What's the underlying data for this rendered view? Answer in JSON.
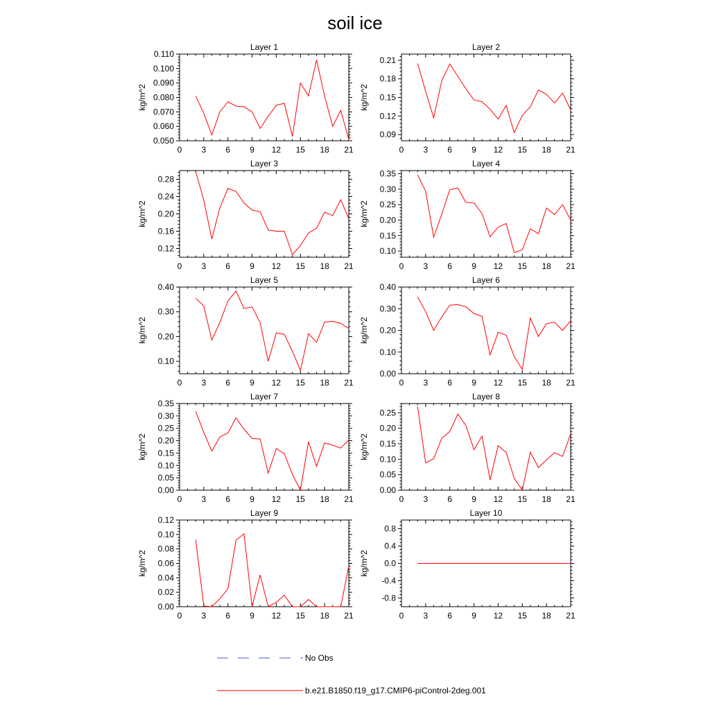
{
  "title": "soil ice",
  "colors": {
    "model_line": "#ff0000",
    "obs_line": "#4a5bd6",
    "axis": "#000000"
  },
  "legend": {
    "obs_label": "No Obs",
    "model_label": "b.e21.B1850.f19_g17.CMIP6-piControl-2deg.001"
  },
  "chart_data": [
    {
      "type": "line",
      "title": "Layer 1",
      "ylabel": "kg/m^2",
      "xlim": [
        0,
        21
      ],
      "ylim": [
        0.05,
        0.11
      ],
      "xticks": [
        "0",
        "3",
        "6",
        "9",
        "12",
        "15",
        "18",
        "21"
      ],
      "yticks": [
        {
          "value": 0.05,
          "label": "0.050"
        },
        {
          "value": 0.06,
          "label": "0.060"
        },
        {
          "value": 0.07,
          "label": "0.070"
        },
        {
          "value": 0.08,
          "label": "0.080"
        },
        {
          "value": 0.09,
          "label": "0.090"
        },
        {
          "value": 0.1,
          "label": "0.100"
        },
        {
          "value": 0.11,
          "label": "0.110"
        }
      ],
      "x": [
        2,
        3,
        4,
        5,
        6,
        7,
        8,
        9,
        10,
        11,
        12,
        13,
        14,
        15,
        16,
        17,
        18,
        19,
        20,
        21
      ],
      "values": [
        0.081,
        0.069,
        0.054,
        0.07,
        0.077,
        0.074,
        0.0735,
        0.07,
        0.0585,
        0.067,
        0.0745,
        0.076,
        0.053,
        0.09,
        0.081,
        0.106,
        0.081,
        0.06,
        0.071,
        0.051
      ]
    },
    {
      "type": "line",
      "title": "Layer 2",
      "ylabel": "kg/m^2",
      "xlim": [
        0,
        21
      ],
      "ylim": [
        0.08,
        0.22
      ],
      "xticks": [
        "0",
        "3",
        "6",
        "9",
        "12",
        "15",
        "18",
        "21"
      ],
      "yticks": [
        {
          "value": 0.09,
          "label": "0.09"
        },
        {
          "value": 0.12,
          "label": "0.12"
        },
        {
          "value": 0.15,
          "label": "0.15"
        },
        {
          "value": 0.18,
          "label": "0.18"
        },
        {
          "value": 0.21,
          "label": "0.21"
        }
      ],
      "x": [
        2,
        3,
        4,
        5,
        6,
        7,
        8,
        9,
        10,
        11,
        12,
        13,
        14,
        15,
        16,
        17,
        18,
        19,
        20,
        21
      ],
      "values": [
        0.205,
        0.16,
        0.117,
        0.177,
        0.204,
        0.184,
        0.164,
        0.146,
        0.143,
        0.131,
        0.115,
        0.137,
        0.093,
        0.121,
        0.135,
        0.162,
        0.155,
        0.141,
        0.157,
        0.13
      ]
    },
    {
      "type": "line",
      "title": "Layer 3",
      "ylabel": "kg/m^2",
      "xlim": [
        0,
        21
      ],
      "ylim": [
        0.1,
        0.3
      ],
      "xticks": [
        "0",
        "3",
        "6",
        "9",
        "12",
        "15",
        "18",
        "21"
      ],
      "yticks": [
        {
          "value": 0.12,
          "label": "0.12"
        },
        {
          "value": 0.16,
          "label": "0.16"
        },
        {
          "value": 0.2,
          "label": "0.20"
        },
        {
          "value": 0.24,
          "label": "0.24"
        },
        {
          "value": 0.28,
          "label": "0.28"
        }
      ],
      "x": [
        2,
        3,
        4,
        5,
        6,
        7,
        8,
        9,
        10,
        11,
        12,
        13,
        14,
        15,
        16,
        17,
        18,
        19,
        20,
        21
      ],
      "values": [
        0.298,
        0.232,
        0.142,
        0.214,
        0.259,
        0.252,
        0.225,
        0.209,
        0.205,
        0.163,
        0.16,
        0.16,
        0.106,
        0.127,
        0.156,
        0.167,
        0.204,
        0.196,
        0.233,
        0.189
      ]
    },
    {
      "type": "line",
      "title": "Layer 4",
      "ylabel": "kg/m^2",
      "xlim": [
        0,
        21
      ],
      "ylim": [
        0.08,
        0.36
      ],
      "xticks": [
        "0",
        "3",
        "6",
        "9",
        "12",
        "15",
        "18",
        "21"
      ],
      "yticks": [
        {
          "value": 0.1,
          "label": "0.10"
        },
        {
          "value": 0.15,
          "label": "0.15"
        },
        {
          "value": 0.2,
          "label": "0.20"
        },
        {
          "value": 0.25,
          "label": "0.25"
        },
        {
          "value": 0.3,
          "label": "0.30"
        },
        {
          "value": 0.35,
          "label": "0.35"
        }
      ],
      "x": [
        2,
        3,
        4,
        5,
        6,
        7,
        8,
        9,
        10,
        11,
        12,
        13,
        14,
        15,
        16,
        17,
        18,
        19,
        20,
        21
      ],
      "values": [
        0.347,
        0.293,
        0.145,
        0.219,
        0.298,
        0.304,
        0.257,
        0.256,
        0.221,
        0.146,
        0.177,
        0.189,
        0.095,
        0.104,
        0.172,
        0.156,
        0.239,
        0.218,
        0.25,
        0.2
      ]
    },
    {
      "type": "line",
      "title": "Layer 5",
      "ylabel": "kg/m^2",
      "xlim": [
        0,
        21
      ],
      "ylim": [
        0.05,
        0.4
      ],
      "xticks": [
        "0",
        "3",
        "6",
        "9",
        "12",
        "15",
        "18",
        "21"
      ],
      "yticks": [
        {
          "value": 0.1,
          "label": "0.10"
        },
        {
          "value": 0.2,
          "label": "0.20"
        },
        {
          "value": 0.3,
          "label": "0.30"
        },
        {
          "value": 0.4,
          "label": "0.40"
        }
      ],
      "x": [
        2,
        3,
        4,
        5,
        6,
        7,
        8,
        9,
        10,
        11,
        12,
        13,
        14,
        15,
        16,
        17,
        18,
        19,
        20,
        21
      ],
      "values": [
        0.355,
        0.324,
        0.186,
        0.257,
        0.344,
        0.384,
        0.313,
        0.32,
        0.256,
        0.1,
        0.215,
        0.209,
        0.141,
        0.063,
        0.212,
        0.177,
        0.258,
        0.262,
        0.253,
        0.233
      ]
    },
    {
      "type": "line",
      "title": "Layer 6",
      "ylabel": "kg/m^2",
      "xlim": [
        0,
        21
      ],
      "ylim": [
        0.0,
        0.4
      ],
      "xticks": [
        "0",
        "3",
        "6",
        "9",
        "12",
        "15",
        "18",
        "21"
      ],
      "yticks": [
        {
          "value": 0.0,
          "label": "0.00"
        },
        {
          "value": 0.1,
          "label": "0.10"
        },
        {
          "value": 0.2,
          "label": "0.20"
        },
        {
          "value": 0.3,
          "label": "0.30"
        },
        {
          "value": 0.4,
          "label": "0.40"
        }
      ],
      "x": [
        2,
        3,
        4,
        5,
        6,
        7,
        8,
        9,
        10,
        11,
        12,
        13,
        14,
        15,
        16,
        17,
        18,
        19,
        20,
        21
      ],
      "values": [
        0.354,
        0.287,
        0.2,
        0.262,
        0.316,
        0.319,
        0.309,
        0.278,
        0.265,
        0.087,
        0.191,
        0.178,
        0.079,
        0.02,
        0.257,
        0.172,
        0.231,
        0.238,
        0.2,
        0.244
      ]
    },
    {
      "type": "line",
      "title": "Layer 7",
      "ylabel": "kg/m^2",
      "xlim": [
        0,
        21
      ],
      "ylim": [
        0.0,
        0.35
      ],
      "xticks": [
        "0",
        "3",
        "6",
        "9",
        "12",
        "15",
        "18",
        "21"
      ],
      "yticks": [
        {
          "value": 0.0,
          "label": "0.00"
        },
        {
          "value": 0.05,
          "label": "0.05"
        },
        {
          "value": 0.1,
          "label": "0.10"
        },
        {
          "value": 0.15,
          "label": "0.15"
        },
        {
          "value": 0.2,
          "label": "0.20"
        },
        {
          "value": 0.25,
          "label": "0.25"
        },
        {
          "value": 0.3,
          "label": "0.30"
        },
        {
          "value": 0.35,
          "label": "0.35"
        }
      ],
      "x": [
        2,
        3,
        4,
        5,
        6,
        7,
        8,
        9,
        10,
        11,
        12,
        13,
        14,
        15,
        16,
        17,
        18,
        19,
        20,
        21
      ],
      "values": [
        0.318,
        0.234,
        0.158,
        0.215,
        0.231,
        0.292,
        0.246,
        0.209,
        0.207,
        0.069,
        0.168,
        0.147,
        0.064,
        0.0,
        0.196,
        0.096,
        0.191,
        0.182,
        0.17,
        0.203
      ]
    },
    {
      "type": "line",
      "title": "Layer 8",
      "ylabel": "kg/m^2",
      "xlim": [
        0,
        21
      ],
      "ylim": [
        0.0,
        0.28
      ],
      "xticks": [
        "0",
        "3",
        "6",
        "9",
        "12",
        "15",
        "18",
        "21"
      ],
      "yticks": [
        {
          "value": 0.0,
          "label": "0.00"
        },
        {
          "value": 0.05,
          "label": "0.05"
        },
        {
          "value": 0.1,
          "label": "0.10"
        },
        {
          "value": 0.15,
          "label": "0.15"
        },
        {
          "value": 0.2,
          "label": "0.20"
        },
        {
          "value": 0.25,
          "label": "0.25"
        }
      ],
      "x": [
        2,
        3,
        4,
        5,
        6,
        7,
        8,
        9,
        10,
        11,
        12,
        13,
        14,
        15,
        16,
        17,
        18,
        19,
        20,
        21
      ],
      "values": [
        0.27,
        0.088,
        0.102,
        0.168,
        0.19,
        0.246,
        0.209,
        0.131,
        0.175,
        0.033,
        0.144,
        0.122,
        0.038,
        0.0,
        0.123,
        0.073,
        0.098,
        0.121,
        0.109,
        0.182
      ]
    },
    {
      "type": "line",
      "title": "Layer 9",
      "ylabel": "kg/m^2",
      "xlim": [
        0,
        21
      ],
      "ylim": [
        0.0,
        0.12
      ],
      "xticks": [
        "0",
        "3",
        "6",
        "9",
        "12",
        "15",
        "18",
        "21"
      ],
      "yticks": [
        {
          "value": 0.0,
          "label": "0.00"
        },
        {
          "value": 0.02,
          "label": "0.02"
        },
        {
          "value": 0.04,
          "label": "0.04"
        },
        {
          "value": 0.06,
          "label": "0.06"
        },
        {
          "value": 0.08,
          "label": "0.08"
        },
        {
          "value": 0.1,
          "label": "0.10"
        },
        {
          "value": 0.12,
          "label": "0.12"
        }
      ],
      "x": [
        2,
        3,
        4,
        5,
        6,
        7,
        8,
        9,
        10,
        11,
        12,
        13,
        14,
        15,
        16,
        17,
        18,
        19,
        20,
        21
      ],
      "values": [
        0.093,
        0.001,
        0.0,
        0.011,
        0.025,
        0.092,
        0.101,
        0.0,
        0.044,
        0.0,
        0.006,
        0.016,
        0.0,
        0.0,
        0.01,
        0.0,
        0.0,
        0.0,
        0.0,
        0.056
      ]
    },
    {
      "type": "line",
      "title": "Layer 10",
      "ylabel": "kg/m^2",
      "xlim": [
        0,
        21
      ],
      "ylim": [
        -1.0,
        1.0
      ],
      "xticks": [
        "0",
        "3",
        "6",
        "9",
        "12",
        "15",
        "18",
        "21"
      ],
      "yticks": [
        {
          "value": -0.8,
          "label": "-0.8"
        },
        {
          "value": -0.4,
          "label": "-0.4"
        },
        {
          "value": 0.0,
          "label": "0.0"
        },
        {
          "value": 0.4,
          "label": "0.4"
        },
        {
          "value": 0.8,
          "label": "0.8"
        }
      ],
      "x": [
        2,
        3,
        4,
        5,
        6,
        7,
        8,
        9,
        10,
        11,
        12,
        13,
        14,
        15,
        16,
        17,
        18,
        19,
        20,
        21
      ],
      "values": [
        0,
        0,
        0,
        0,
        0,
        0,
        0,
        0,
        0,
        0,
        0,
        0,
        0,
        0,
        0,
        0,
        0,
        0,
        0,
        0
      ]
    }
  ]
}
